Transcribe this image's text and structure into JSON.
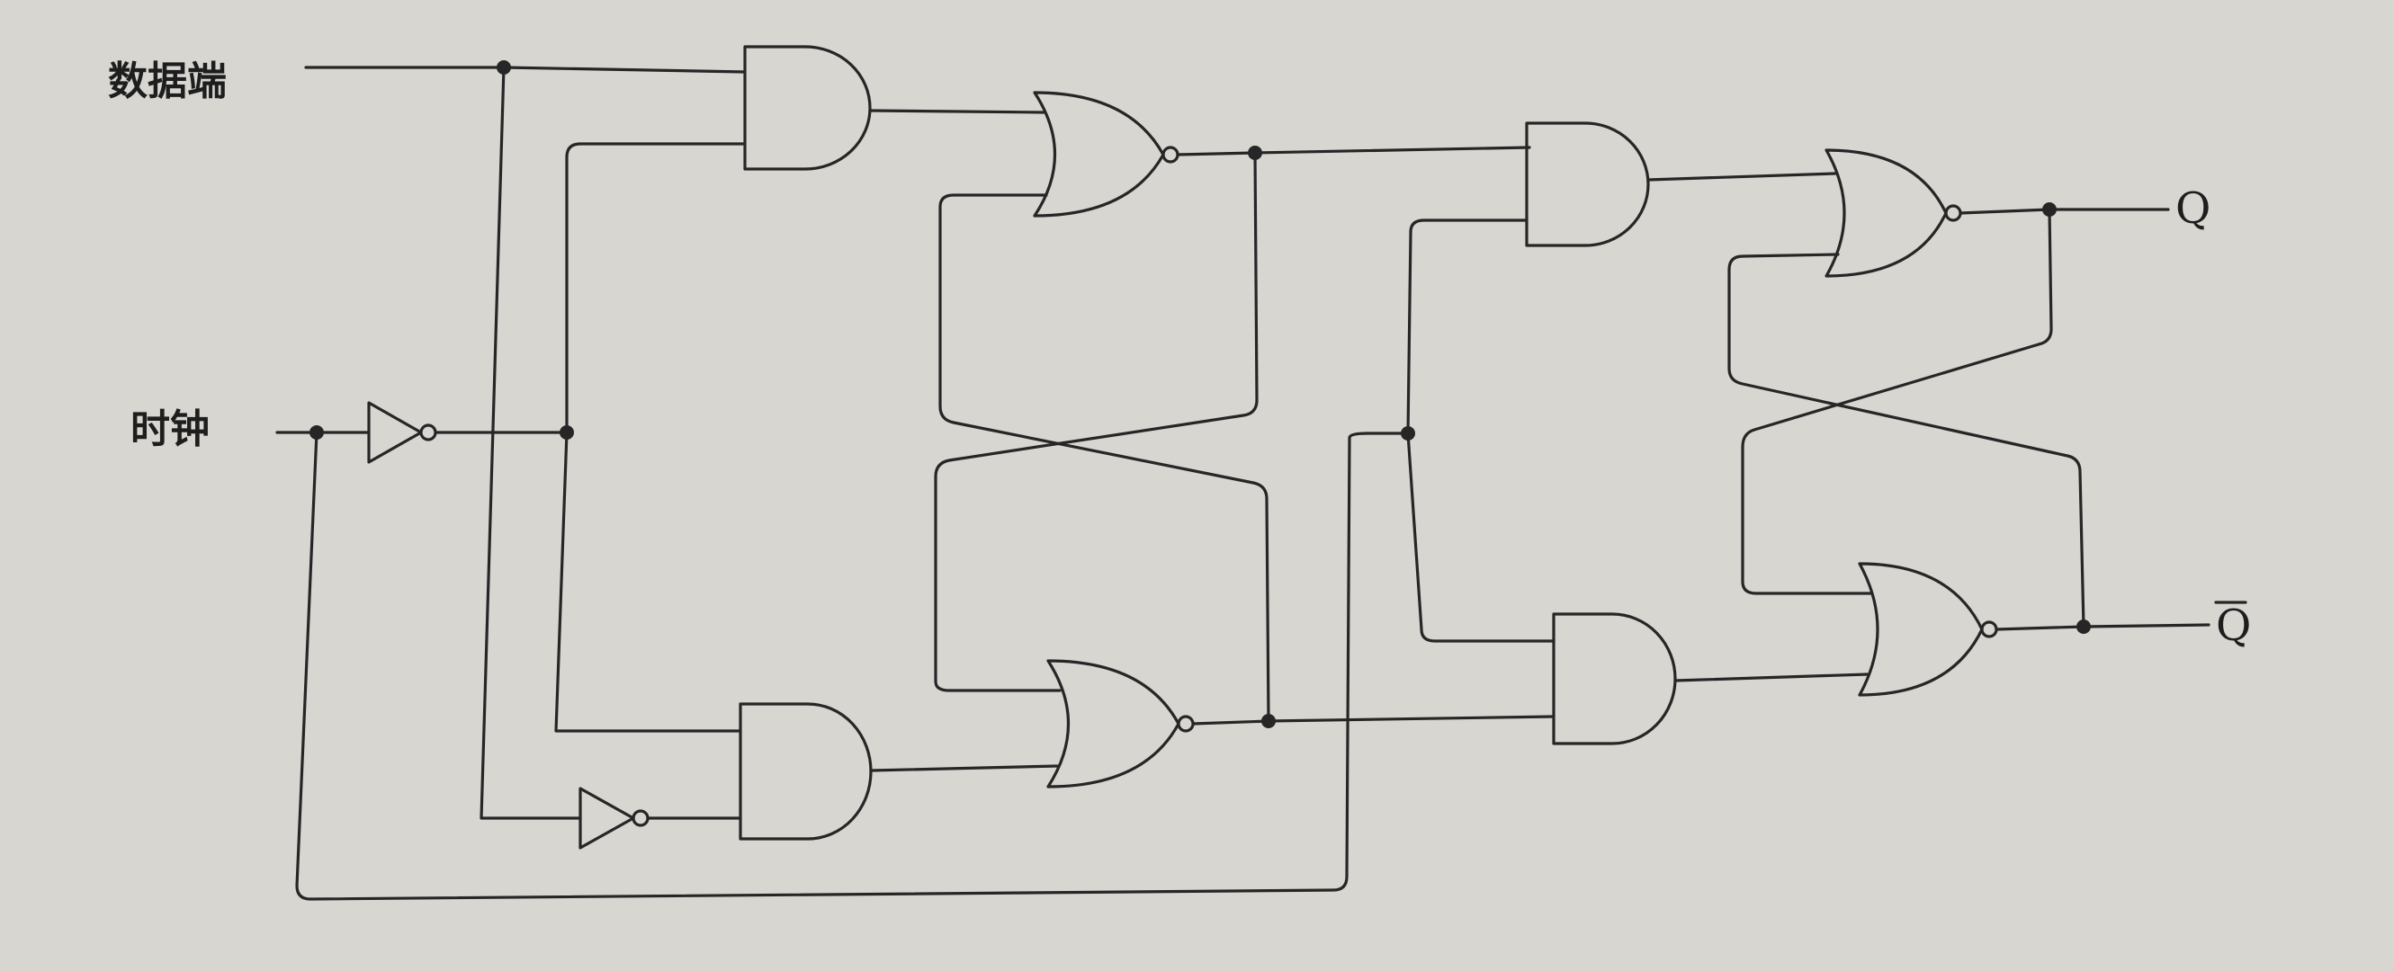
{
  "labels": {
    "data_input": "数据端",
    "clock": "时钟",
    "q_output": "Q",
    "q_bar_output": "Q"
  },
  "colors": {
    "paper": "#d7d6d1",
    "ink": "#262626"
  }
}
